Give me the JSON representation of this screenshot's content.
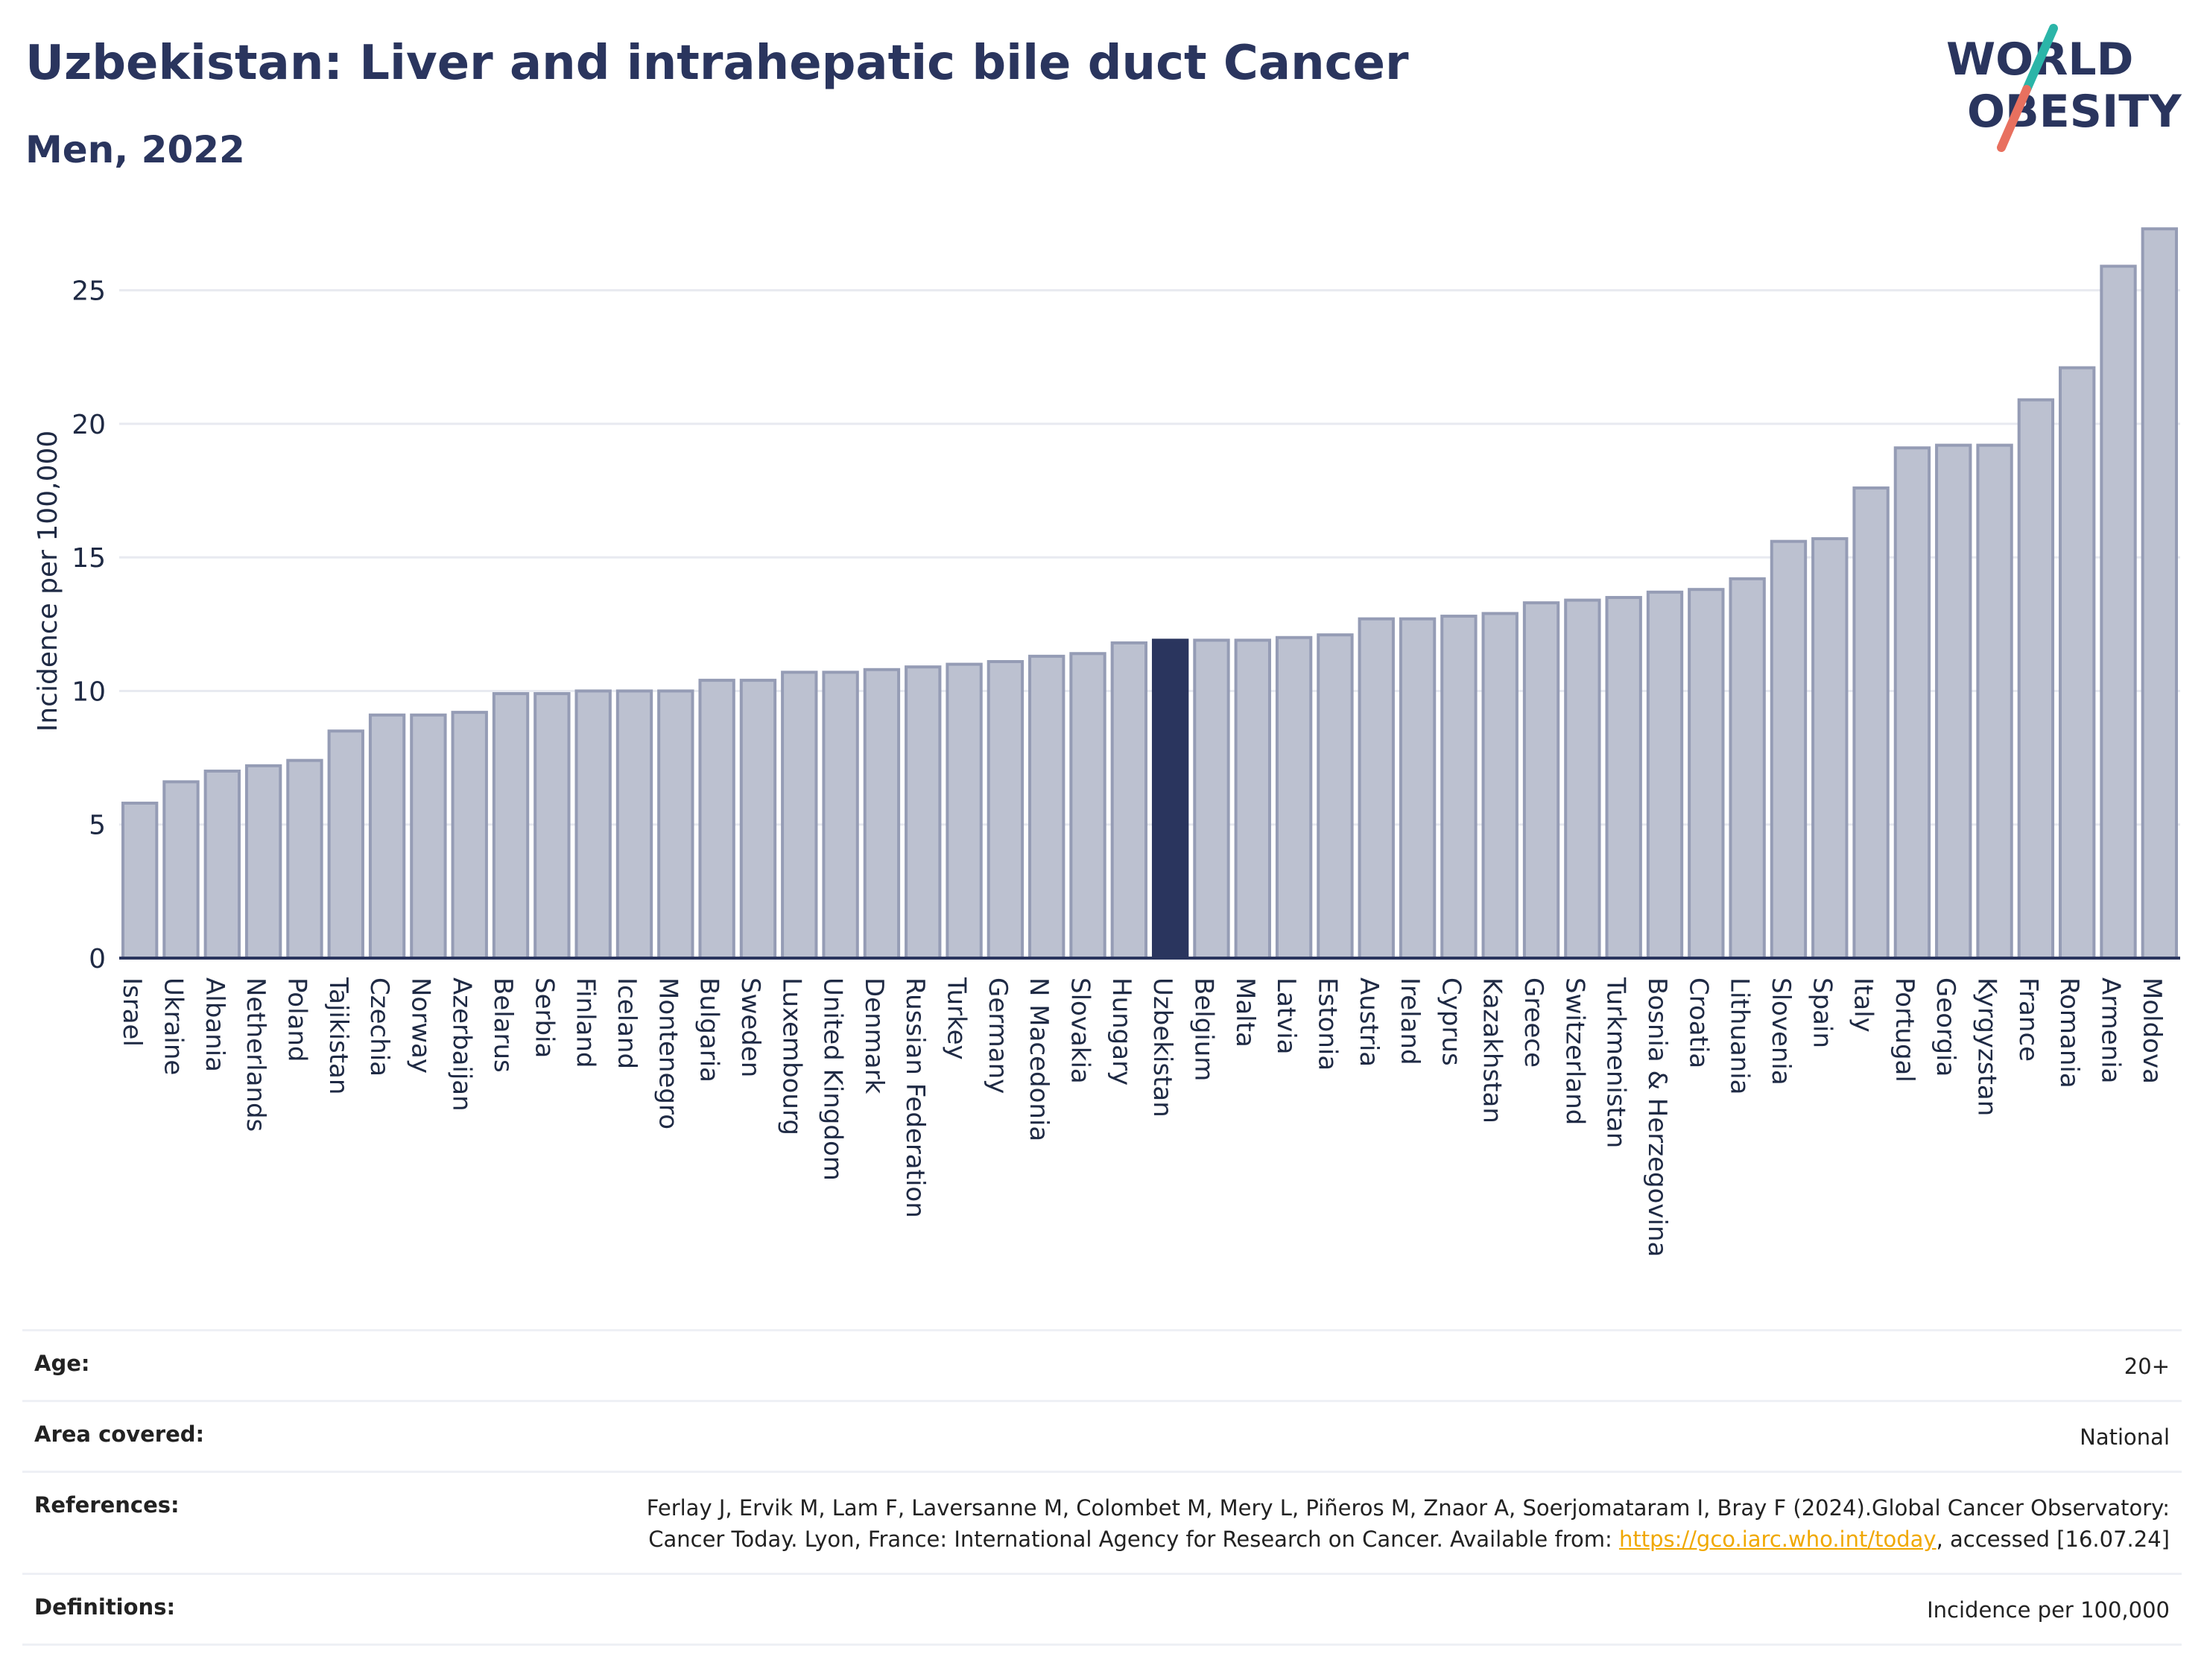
{
  "header": {
    "title": "Uzbekistan: Liver and intrahepatic bile duct Cancer",
    "subtitle": "Men, 2022"
  },
  "logo": {
    "line1": "WORLD",
    "line2": "OBESITY",
    "colors": {
      "text": "#2a355e",
      "slash_top": "#2bb5a8",
      "slash_bottom": "#e8705f"
    }
  },
  "colors": {
    "bar_fill": "#bcc1d0",
    "bar_stroke": "#959cb5",
    "highlight_fill": "#2a355e",
    "grid": "#e8eaf0",
    "axis": "#2a355e"
  },
  "chart_data": {
    "type": "bar",
    "ylabel": "Incidence per 100,000",
    "ylim": [
      0,
      27.5
    ],
    "yticks": [
      0,
      5,
      10,
      15,
      20,
      25
    ],
    "grid": true,
    "highlight": "Uzbekistan",
    "categories": [
      "Israel",
      "Ukraine",
      "Albania",
      "Netherlands",
      "Poland",
      "Tajikistan",
      "Czechia",
      "Norway",
      "Azerbaijan",
      "Belarus",
      "Serbia",
      "Finland",
      "Iceland",
      "Montenegro",
      "Bulgaria",
      "Sweden",
      "Luxembourg",
      "United Kingdom",
      "Denmark",
      "Russian Federation",
      "Turkey",
      "Germany",
      "N Macedonia",
      "Slovakia",
      "Hungary",
      "Uzbekistan",
      "Belgium",
      "Malta",
      "Latvia",
      "Estonia",
      "Austria",
      "Ireland",
      "Cyprus",
      "Kazakhstan",
      "Greece",
      "Switzerland",
      "Turkmenistan",
      "Bosnia & Herzegovina",
      "Croatia",
      "Lithuania",
      "Slovenia",
      "Spain",
      "Italy",
      "Portugal",
      "Georgia",
      "Kyrgyzstan",
      "France",
      "Romania",
      "Armenia",
      "Moldova"
    ],
    "values": [
      5.8,
      6.6,
      7.0,
      7.2,
      7.4,
      8.5,
      9.1,
      9.1,
      9.2,
      9.9,
      9.9,
      10.0,
      10.0,
      10.0,
      10.4,
      10.4,
      10.7,
      10.7,
      10.8,
      10.9,
      11.0,
      11.1,
      11.3,
      11.4,
      11.8,
      11.9,
      11.9,
      11.9,
      12.0,
      12.1,
      12.7,
      12.7,
      12.8,
      12.9,
      13.3,
      13.4,
      13.5,
      13.7,
      13.8,
      14.2,
      15.6,
      15.7,
      17.6,
      19.1,
      19.2,
      19.2,
      20.9,
      22.1,
      25.9,
      27.3
    ]
  },
  "meta": {
    "age_label": "Age:",
    "age_value": "20+",
    "area_label": "Area covered:",
    "area_value": "National",
    "references_label": "References:",
    "references_text_1": "Ferlay J, Ervik M, Lam F, Laversanne M, Colombet M, Mery L, Piñeros M, Znaor A, Soerjomataram I, Bray F (2024).Global Cancer Observatory: Cancer Today. Lyon, France: International Agency for Research on Cancer. Available from: ",
    "references_link": "https://gco.iarc.who.int/today",
    "references_text_2": ", accessed [16.07.24]",
    "definitions_label": "Definitions:",
    "definitions_value": "Incidence per 100,000"
  }
}
